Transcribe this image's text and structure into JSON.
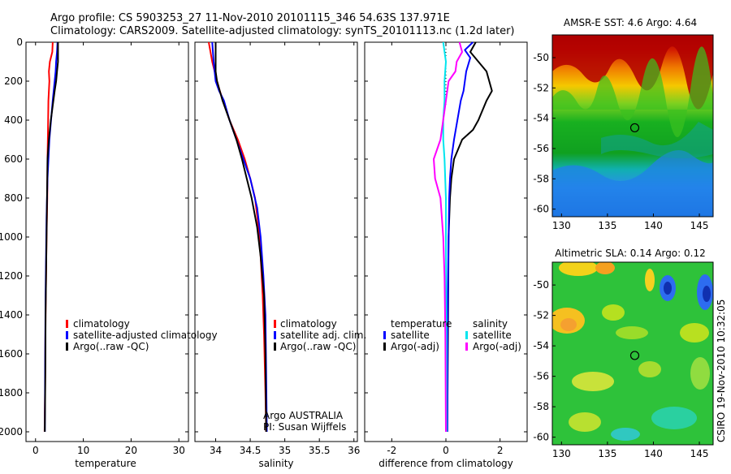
{
  "header": {
    "title_line1": "Argo profile: CS 5903253_27 11-Nov-2010 20101115_346 54.63S 137.971E",
    "title_line2": "Climatology: CARS2009. Satellite-adjusted climatology: synTS_20101113.nc (1.2d later)"
  },
  "credits": {
    "agency": "Argo AUSTRALIA",
    "pi": "PI: Susan Wijffels",
    "stamp": "CSIRO 19-Nov-2010 10:32:05"
  },
  "colors": {
    "red": "#ff0000",
    "blue": "#0000ff",
    "black": "#000000",
    "cyan": "#00e5ee",
    "magenta": "#ff00ff"
  },
  "chart_data": [
    {
      "type": "line",
      "id": "temperature",
      "xlabel": "temperature",
      "xlim": [
        -2,
        32
      ],
      "ylim": [
        2050,
        0
      ],
      "xticks": [
        0,
        10,
        20,
        30
      ],
      "yticks": [
        0,
        200,
        400,
        600,
        800,
        1000,
        1200,
        1400,
        1600,
        1800,
        2000
      ],
      "legend": [
        {
          "label": "climatology",
          "color": "#ff0000"
        },
        {
          "label": "satellite-adjusted climatology",
          "color": "#0000ff"
        },
        {
          "label": "Argo(..raw -QC)",
          "color": "#000000"
        }
      ],
      "series": [
        {
          "color": "#ff0000",
          "x": [
            3.6,
            3.5,
            3.0,
            2.8,
            2.9,
            2.7,
            2.6,
            2.5,
            2.45,
            2.3,
            2.2,
            2.1,
            2.05,
            2.0,
            1.9
          ],
          "y": [
            0,
            50,
            100,
            150,
            200,
            300,
            450,
            600,
            800,
            1000,
            1200,
            1400,
            1600,
            1800,
            2000
          ]
        },
        {
          "color": "#0000ff",
          "x": [
            4.6,
            4.5,
            4.3,
            4.2,
            4.0,
            3.6,
            2.9,
            2.5,
            2.3,
            2.2,
            2.1,
            2.05,
            2.0,
            1.95
          ],
          "y": [
            0,
            50,
            100,
            150,
            200,
            300,
            500,
            700,
            900,
            1100,
            1300,
            1500,
            1700,
            2000
          ]
        },
        {
          "color": "#000000",
          "x": [
            4.7,
            4.7,
            4.7,
            4.5,
            4.3,
            4.0,
            3.2,
            2.8,
            2.5,
            2.4,
            2.3,
            2.2,
            2.1,
            2.05,
            1.95
          ],
          "y": [
            0,
            50,
            100,
            150,
            200,
            250,
            400,
            500,
            600,
            800,
            1000,
            1200,
            1400,
            1700,
            2000
          ]
        }
      ]
    },
    {
      "type": "line",
      "id": "salinity",
      "xlabel": "salinity",
      "xlim": [
        33.7,
        36.05
      ],
      "ylim": [
        2050,
        0
      ],
      "xticks": [
        34,
        34.5,
        35,
        35.5,
        36
      ],
      "legend": [
        {
          "label": "climatology",
          "color": "#ff0000"
        },
        {
          "label": "satellite adj. clim.",
          "color": "#0000ff"
        },
        {
          "label": "Argo(..raw -QC)",
          "color": "#000000"
        }
      ],
      "series": [
        {
          "color": "#ff0000",
          "x": [
            33.9,
            33.95,
            34.02,
            34.06,
            34.2,
            34.32,
            34.42,
            34.5,
            34.57,
            34.62,
            34.65,
            34.68,
            34.7,
            34.72,
            34.73
          ],
          "y": [
            0,
            100,
            200,
            250,
            400,
            500,
            600,
            700,
            800,
            950,
            1100,
            1300,
            1500,
            1800,
            2000
          ]
        },
        {
          "color": "#0000ff",
          "x": [
            33.95,
            33.97,
            34.0,
            34.05,
            34.12,
            34.2,
            34.3,
            34.4,
            34.5,
            34.6,
            34.65,
            34.69,
            34.72,
            34.73,
            34.74
          ],
          "y": [
            0,
            100,
            200,
            250,
            300,
            400,
            500,
            600,
            700,
            850,
            1000,
            1200,
            1400,
            1700,
            2000
          ]
        },
        {
          "color": "#000000",
          "x": [
            34.0,
            34.0,
            34.0,
            34.02,
            34.1,
            34.2,
            34.3,
            34.38,
            34.45,
            34.52,
            34.6,
            34.65,
            34.7,
            34.72,
            34.73
          ],
          "y": [
            0,
            100,
            150,
            200,
            300,
            400,
            500,
            600,
            700,
            800,
            950,
            1100,
            1300,
            1600,
            2000
          ]
        }
      ]
    },
    {
      "type": "line",
      "id": "difference",
      "xlabel": "difference from climatology",
      "xlim": [
        -3,
        3
      ],
      "ylim": [
        2050,
        0
      ],
      "xticks": [
        -2,
        0,
        2
      ],
      "legend": [
        {
          "label": "temperature",
          "color": ""
        },
        {
          "label": "satellite",
          "color": "#0000ff"
        },
        {
          "label": "Argo(-adj)",
          "color": "#000000"
        },
        {
          "label": "salinity",
          "color": ""
        },
        {
          "label": "satellite",
          "color": "#00e5ee"
        },
        {
          "label": "Argo(-adj)",
          "color": "#ff00ff"
        }
      ],
      "series": [
        {
          "color": "#000000",
          "x": [
            1.1,
            0.9,
            1.2,
            1.5,
            1.7,
            1.5,
            1.2,
            1.0,
            0.6,
            0.3,
            0.2,
            0.15,
            0.1,
            0.08,
            0.05
          ],
          "y": [
            0,
            50,
            100,
            150,
            250,
            300,
            400,
            450,
            500,
            600,
            700,
            800,
            1000,
            1400,
            2000
          ]
        },
        {
          "color": "#0000ff",
          "x": [
            1.0,
            0.7,
            0.9,
            0.75,
            0.65,
            0.55,
            0.3,
            0.2,
            0.15,
            0.12,
            0.1,
            0.08,
            0.06,
            0.05
          ],
          "y": [
            0,
            40,
            80,
            150,
            250,
            300,
            500,
            600,
            700,
            800,
            1000,
            1200,
            1500,
            2000
          ]
        },
        {
          "color": "#00e5ee",
          "x": [
            -0.1,
            0.0,
            -0.05,
            -0.05,
            -0.1,
            -0.1,
            -0.05,
            0.0,
            0.0,
            0.02,
            0.02
          ],
          "y": [
            0,
            100,
            200,
            300,
            400,
            500,
            600,
            800,
            1000,
            1500,
            2000
          ]
        },
        {
          "color": "#ff00ff",
          "x": [
            0.5,
            0.6,
            0.4,
            0.35,
            0.1,
            0.0,
            -0.2,
            -0.45,
            -0.4,
            -0.2,
            -0.1,
            -0.05,
            -0.02,
            0.0
          ],
          "y": [
            0,
            50,
            100,
            150,
            200,
            300,
            500,
            600,
            700,
            800,
            1000,
            1200,
            1500,
            2000
          ]
        }
      ]
    },
    {
      "type": "heatmap",
      "id": "sst_map",
      "title": "AMSR-E SST: 4.6 Argo: 4.64",
      "xlim": [
        129,
        146.5
      ],
      "ylim": [
        -60.5,
        -48.5
      ],
      "xticks": [
        130,
        135,
        140,
        145
      ],
      "yticks": [
        -50,
        -52,
        -54,
        -56,
        -58,
        -60
      ],
      "marker": {
        "lon": 137.97,
        "lat": -54.63
      }
    },
    {
      "type": "heatmap",
      "id": "sla_map",
      "title": "Altimetric SLA: 0.14 Argo: 0.12",
      "xlim": [
        129,
        146.5
      ],
      "ylim": [
        -60.5,
        -48.5
      ],
      "xticks": [
        130,
        135,
        140,
        145
      ],
      "yticks": [
        -50,
        -52,
        -54,
        -56,
        -58,
        -60
      ],
      "marker": {
        "lon": 137.97,
        "lat": -54.63
      }
    }
  ]
}
